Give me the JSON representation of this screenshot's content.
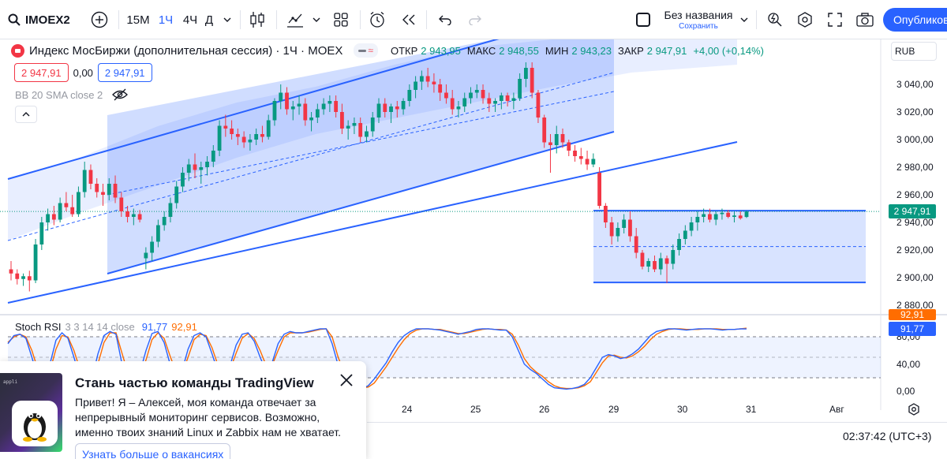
{
  "toolbar": {
    "symbol": "IMOEX2",
    "intervals": [
      "15М",
      "1Ч",
      "4Ч",
      "Д"
    ],
    "active_interval": "1Ч",
    "layout_title": "Без названия",
    "layout_save": "Сохранить",
    "publish_label": "Опубликовать"
  },
  "legend": {
    "name": "Индекс МосБиржи (дополнительная сессия) · 1Ч · MOEX",
    "open_label": "ОТКР",
    "open": "2 943,95",
    "high_label": "МАКС",
    "high": "2 948,55",
    "low_label": "МИН",
    "low": "2 943,23",
    "close_label": "ЗАКР",
    "close": "2 947,91",
    "change": "+4,00 (+0,14%)",
    "bid": "2 947,91",
    "spread": "0,00",
    "ask": "2 947,91",
    "bb": "BB 20 SMA close 2"
  },
  "currency": "RUB",
  "price_axis": [
    "3 040,00",
    "3 020,00",
    "3 000,00",
    "2 980,00",
    "2 960,00",
    "2 940,00",
    "2 920,00",
    "2 900,00",
    "2 880,00"
  ],
  "last_price": "2 947,91",
  "stoch": {
    "name": "Stoch RSI",
    "params": "3 3 14 14 close",
    "k": "91,77",
    "d": "92,91",
    "axis": [
      "80,00",
      "40,00",
      "0,00"
    ]
  },
  "time_axis": [
    "24",
    "25",
    "26",
    "29",
    "30",
    "31",
    "Авг"
  ],
  "clock": "02:37:42 (UTC+3)",
  "toast": {
    "title": "Стань частью команды TradingView",
    "body": "Привет! Я – Алексей, моя команда отвечает за непрерывный мониторинг сервисов. Возможно, именно твоих знаний Linux и Zabbix нам не хватает.",
    "link": "Узнать больше о вакансиях",
    "terminal_text": "appli"
  },
  "colors": {
    "up": "#089981",
    "down": "#f23645",
    "accent": "#2962ff",
    "stoch_d": "#ff6d00"
  },
  "chart_data": {
    "type": "candlestick",
    "ylim": [
      2875,
      3060
    ],
    "candles": [
      [
        2906,
        2912,
        2898,
        2903
      ],
      [
        2903,
        2906,
        2895,
        2899
      ],
      [
        2899,
        2903,
        2894,
        2901
      ],
      [
        2901,
        2905,
        2890,
        2898
      ],
      [
        2898,
        2928,
        2896,
        2924
      ],
      [
        2924,
        2944,
        2920,
        2940
      ],
      [
        2940,
        2950,
        2934,
        2946
      ],
      [
        2946,
        2952,
        2938,
        2942
      ],
      [
        2942,
        2958,
        2940,
        2954
      ],
      [
        2954,
        2962,
        2948,
        2951
      ],
      [
        2951,
        2960,
        2944,
        2946
      ],
      [
        2946,
        2966,
        2944,
        2962
      ],
      [
        2962,
        2984,
        2958,
        2978
      ],
      [
        2978,
        2982,
        2964,
        2968
      ],
      [
        2968,
        2972,
        2958,
        2962
      ],
      [
        2962,
        2968,
        2952,
        2960
      ],
      [
        2960,
        2972,
        2956,
        2968
      ],
      [
        2968,
        2974,
        2954,
        2958
      ],
      [
        2958,
        2962,
        2944,
        2948
      ],
      [
        2948,
        2952,
        2940,
        2944
      ],
      [
        2944,
        2950,
        2938,
        2946
      ],
      [
        2946,
        2949,
        2940,
        2942
      ],
      [
        2914,
        2922,
        2906,
        2918
      ],
      [
        2918,
        2930,
        2912,
        2926
      ],
      [
        2926,
        2942,
        2922,
        2938
      ],
      [
        2938,
        2948,
        2934,
        2944
      ],
      [
        2944,
        2958,
        2940,
        2954
      ],
      [
        2954,
        2970,
        2950,
        2966
      ],
      [
        2966,
        2980,
        2962,
        2976
      ],
      [
        2976,
        2986,
        2970,
        2982
      ],
      [
        2982,
        2990,
        2972,
        2978
      ],
      [
        2978,
        2984,
        2968,
        2980
      ],
      [
        2980,
        2988,
        2974,
        2984
      ],
      [
        2984,
        2996,
        2980,
        2992
      ],
      [
        2992,
        3014,
        2988,
        3010
      ],
      [
        3010,
        3018,
        3002,
        3008
      ],
      [
        3008,
        3014,
        3000,
        3004
      ],
      [
        3004,
        3008,
        2996,
        3002
      ],
      [
        3002,
        3006,
        2994,
        2998
      ],
      [
        2998,
        3004,
        2992,
        3000
      ],
      [
        3000,
        3008,
        2996,
        3004
      ],
      [
        3004,
        3010,
        2998,
        3002
      ],
      [
        3002,
        3018,
        3000,
        3014
      ],
      [
        3014,
        3030,
        3010,
        3028
      ],
      [
        3028,
        3040,
        3022,
        3034
      ],
      [
        3034,
        3038,
        3018,
        3022
      ],
      [
        3022,
        3028,
        3014,
        3024
      ],
      [
        3024,
        3032,
        3018,
        3026
      ],
      [
        3026,
        3030,
        3010,
        3014
      ],
      [
        3014,
        3020,
        3006,
        3016
      ],
      [
        3016,
        3026,
        3012,
        3022
      ],
      [
        3022,
        3030,
        3018,
        3026
      ],
      [
        3026,
        3032,
        3020,
        3028
      ],
      [
        3028,
        3032,
        3016,
        3020
      ],
      [
        3020,
        3026,
        3004,
        3008
      ],
      [
        3008,
        3014,
        3000,
        3010
      ],
      [
        3010,
        3016,
        3004,
        3012
      ],
      [
        3012,
        3016,
        2998,
        3002
      ],
      [
        3002,
        3010,
        2998,
        3006
      ],
      [
        3006,
        3020,
        3002,
        3016
      ],
      [
        3016,
        3030,
        3012,
        3026
      ],
      [
        3026,
        3030,
        3016,
        3020
      ],
      [
        3020,
        3026,
        3012,
        3024
      ],
      [
        3024,
        3028,
        3016,
        3022
      ],
      [
        3022,
        3030,
        3018,
        3028
      ],
      [
        3028,
        3040,
        3024,
        3036
      ],
      [
        3036,
        3046,
        3030,
        3042
      ],
      [
        3042,
        3050,
        3036,
        3046
      ],
      [
        3046,
        3052,
        3038,
        3042
      ],
      [
        3042,
        3048,
        3034,
        3040
      ],
      [
        3040,
        3044,
        3028,
        3034
      ],
      [
        3034,
        3040,
        3026,
        3030
      ],
      [
        3030,
        3036,
        3018,
        3022
      ],
      [
        3022,
        3028,
        3016,
        3024
      ],
      [
        3024,
        3034,
        3020,
        3030
      ],
      [
        3030,
        3038,
        3026,
        3034
      ],
      [
        3034,
        3040,
        3030,
        3036
      ],
      [
        3036,
        3040,
        3026,
        3030
      ],
      [
        3030,
        3034,
        3020,
        3026
      ],
      [
        3026,
        3030,
        3020,
        3028
      ],
      [
        3028,
        3034,
        3022,
        3032
      ],
      [
        3032,
        3034,
        3024,
        3028
      ],
      [
        3028,
        3034,
        3022,
        3030
      ],
      [
        3030,
        3048,
        3028,
        3044
      ],
      [
        3044,
        3056,
        3038,
        3052
      ],
      [
        3052,
        3056,
        3030,
        3034
      ],
      [
        3034,
        3036,
        3012,
        3016
      ],
      [
        3016,
        3018,
        2994,
        2998
      ],
      [
        2998,
        3004,
        2976,
        2996
      ],
      [
        2996,
        3010,
        2990,
        3004
      ],
      [
        3004,
        3008,
        2994,
        2998
      ],
      [
        2998,
        3000,
        2988,
        2992
      ],
      [
        2992,
        2996,
        2984,
        2988
      ],
      [
        2988,
        2994,
        2982,
        2986
      ],
      [
        2986,
        2992,
        2978,
        2982
      ],
      [
        2982,
        2990,
        2980,
        2986
      ],
      [
        2976,
        2980,
        2950,
        2952
      ],
      [
        2952,
        2954,
        2936,
        2940
      ],
      [
        2940,
        2944,
        2924,
        2930
      ],
      [
        2930,
        2940,
        2926,
        2936
      ],
      [
        2936,
        2946,
        2932,
        2942
      ],
      [
        2942,
        2948,
        2926,
        2930
      ],
      [
        2930,
        2936,
        2914,
        2918
      ],
      [
        2918,
        2920,
        2906,
        2908
      ],
      [
        2908,
        2914,
        2904,
        2912
      ],
      [
        2912,
        2916,
        2904,
        2906
      ],
      [
        2906,
        2918,
        2902,
        2914
      ],
      [
        2914,
        2916,
        2896,
        2910
      ],
      [
        2910,
        2924,
        2906,
        2920
      ],
      [
        2920,
        2932,
        2916,
        2928
      ],
      [
        2928,
        2938,
        2924,
        2934
      ],
      [
        2934,
        2944,
        2930,
        2940
      ],
      [
        2940,
        2948,
        2934,
        2944
      ],
      [
        2944,
        2950,
        2940,
        2946
      ],
      [
        2946,
        2950,
        2940,
        2942
      ],
      [
        2942,
        2948,
        2938,
        2946
      ],
      [
        2946,
        2950,
        2942,
        2947
      ],
      [
        2947,
        2949,
        2943,
        2944
      ],
      [
        2944,
        2948,
        2940,
        2945
      ],
      [
        2945,
        2948,
        2942,
        2943
      ],
      [
        2943.95,
        2948.55,
        2943.23,
        2947.91
      ]
    ],
    "horizontal_range": {
      "top": 2948.5,
      "mid": 2922.5,
      "bottom": 2896.5
    },
    "stoch_k": [
      70,
      82,
      84,
      78,
      50,
      20,
      8,
      40,
      75,
      86,
      78,
      50,
      20,
      8,
      18,
      55,
      82,
      88,
      84,
      40,
      15,
      10,
      28,
      60,
      85,
      88,
      72,
      40,
      20,
      30,
      62,
      82,
      86,
      80,
      55,
      28,
      20,
      38,
      68,
      84,
      86,
      74,
      50,
      30,
      42,
      70,
      84,
      88,
      86,
      86,
      88,
      90,
      92,
      92,
      70,
      38,
      20,
      12,
      6,
      4,
      8,
      18,
      30,
      42,
      58,
      72,
      82,
      88,
      92,
      92,
      92,
      91,
      90,
      88,
      86,
      84,
      86,
      88,
      91,
      92,
      92,
      91,
      90,
      90,
      80,
      60,
      40,
      32,
      26,
      18,
      10,
      5,
      4,
      3,
      4,
      6,
      10,
      20,
      35,
      50,
      54,
      52,
      48,
      50,
      55,
      62,
      72,
      82,
      88,
      90,
      92,
      92,
      91,
      90,
      91,
      92,
      92,
      92,
      91,
      90,
      91,
      91,
      92,
      91.77
    ],
    "stoch_d": [
      72,
      80,
      84,
      80,
      60,
      32,
      14,
      30,
      62,
      82,
      80,
      60,
      32,
      14,
      14,
      40,
      72,
      86,
      86,
      56,
      26,
      12,
      20,
      46,
      76,
      86,
      78,
      52,
      28,
      26,
      50,
      76,
      84,
      82,
      64,
      38,
      24,
      32,
      56,
      78,
      85,
      78,
      60,
      38,
      38,
      60,
      80,
      86,
      86,
      86,
      87,
      89,
      91,
      92,
      80,
      50,
      28,
      16,
      9,
      5,
      6,
      12,
      24,
      36,
      50,
      64,
      76,
      85,
      90,
      92,
      92,
      91,
      91,
      89,
      87,
      85,
      85,
      87,
      89,
      91,
      92,
      91,
      91,
      90,
      84,
      68,
      48,
      36,
      28,
      22,
      14,
      8,
      5,
      4,
      4,
      5,
      8,
      14,
      28,
      42,
      52,
      53,
      50,
      49,
      52,
      58,
      66,
      76,
      84,
      88,
      91,
      92,
      92,
      91,
      91,
      91,
      92,
      92,
      92,
      91,
      91,
      91,
      92,
      92.91
    ]
  }
}
